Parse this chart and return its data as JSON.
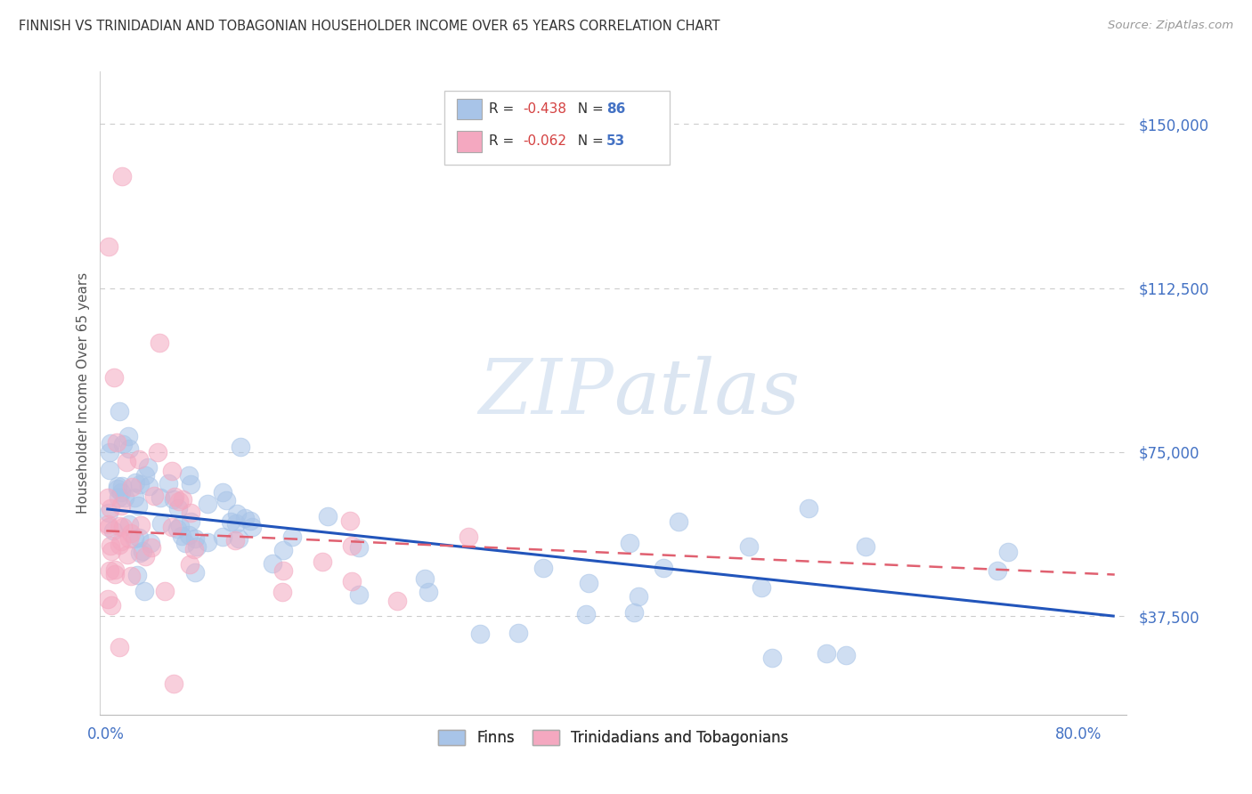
{
  "title": "FINNISH VS TRINIDADIAN AND TOBAGONIAN HOUSEHOLDER INCOME OVER 65 YEARS CORRELATION CHART",
  "source": "Source: ZipAtlas.com",
  "ylabel": "Householder Income Over 65 years",
  "ytick_labels": [
    "$37,500",
    "$75,000",
    "$112,500",
    "$150,000"
  ],
  "ytick_values": [
    37500,
    75000,
    112500,
    150000
  ],
  "ylim": [
    15000,
    162000
  ],
  "xlim": [
    -0.005,
    0.84
  ],
  "title_color": "#333333",
  "source_color": "#999999",
  "ylabel_color": "#555555",
  "ytick_color": "#4472c4",
  "xtick_color": "#4472c4",
  "grid_color": "#cccccc",
  "background_color": "#ffffff",
  "finn_scatter_color": "#a8c4e8",
  "tnt_scatter_color": "#f4a8c0",
  "finn_line_color": "#2255bb",
  "tnt_line_color": "#e06070",
  "finn_R": -0.438,
  "finn_N": 86,
  "tnt_R": -0.062,
  "tnt_N": 53,
  "watermark_zip": "ZIP",
  "watermark_atlas": "atlas",
  "finn_line_x0": 0.0,
  "finn_line_y0": 62000,
  "finn_line_x1": 0.83,
  "finn_line_y1": 37500,
  "tnt_line_x0": 0.0,
  "tnt_line_y0": 58000,
  "tnt_line_x1": 0.3,
  "tnt_line_y1": 51000
}
